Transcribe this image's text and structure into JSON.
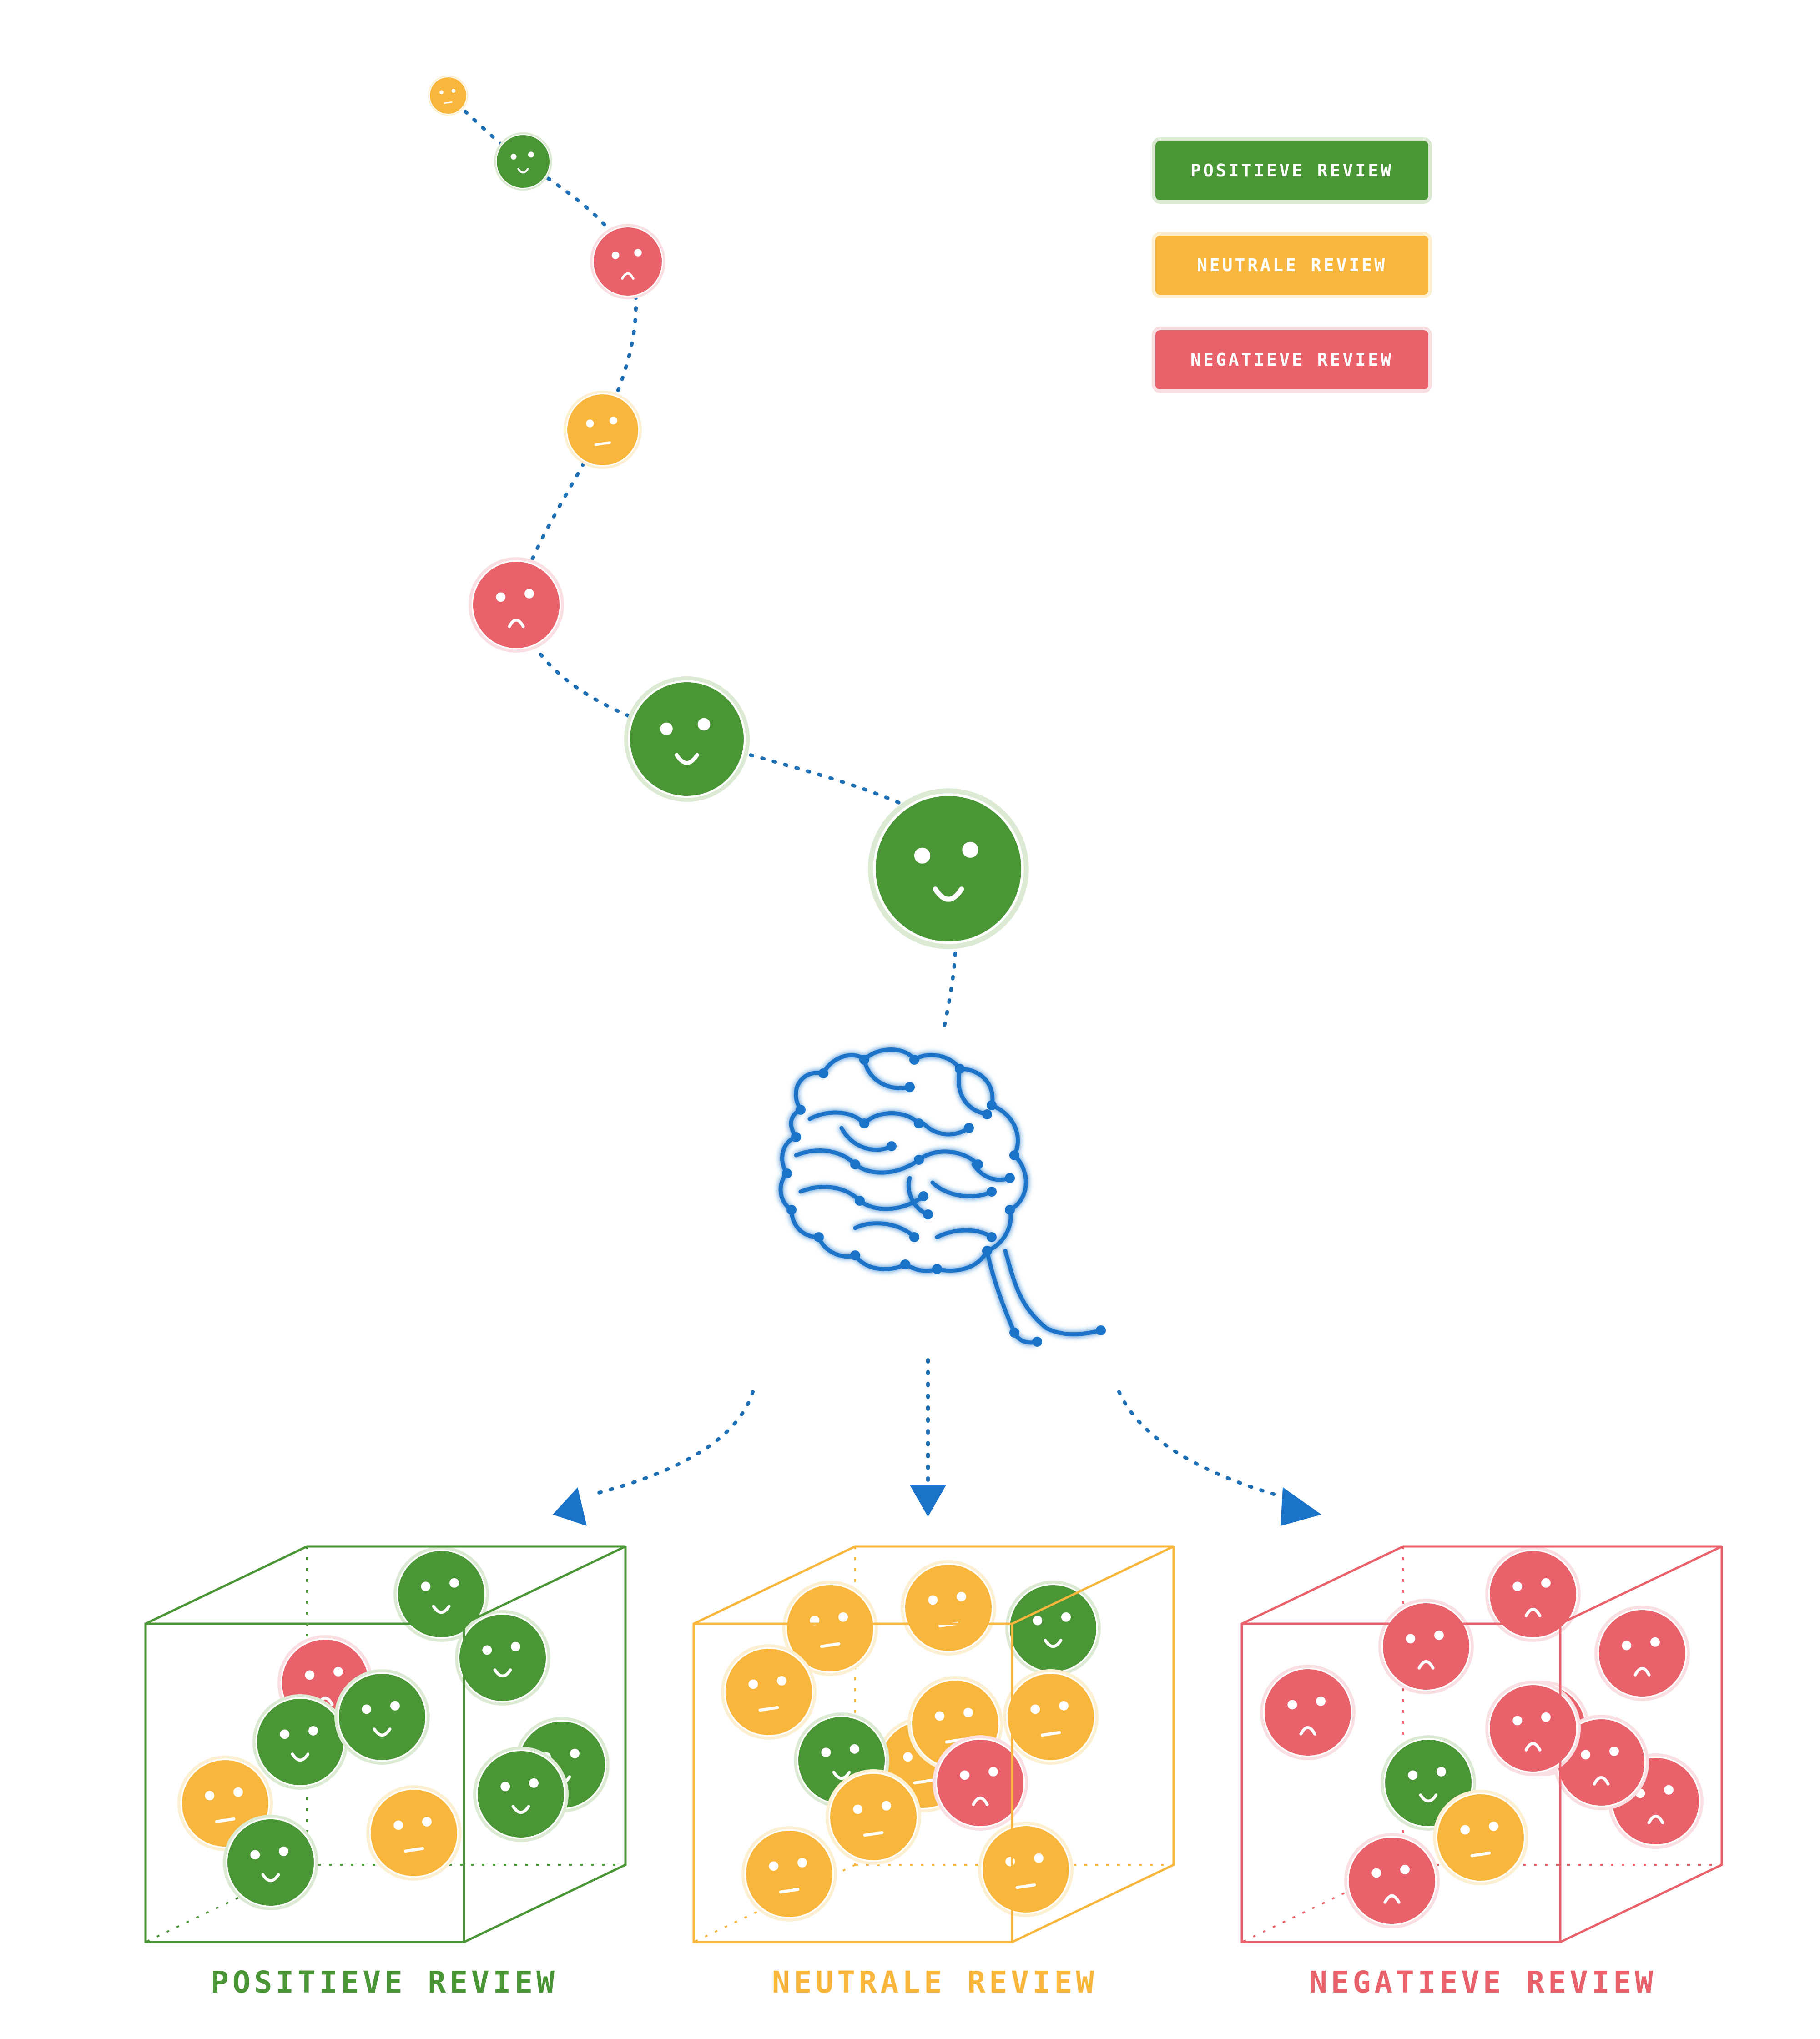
{
  "legend": {
    "positive": "POSITIEVE REVIEW",
    "neutral": "NEUTRALE REVIEW",
    "negative": "NEGATIEVE REVIEW"
  },
  "boxes": {
    "positive": "POSITIEVE REVIEW",
    "neutral": "NEUTRALE REVIEW",
    "negative": "NEGATIEVE REVIEW"
  },
  "colors": {
    "positive": "#4a9535",
    "neutral": "#f8b73c",
    "negative": "#e8616b",
    "brain": "#1a73c8",
    "path": "#1f6fb5"
  },
  "review_stream": [
    "neutral",
    "positive",
    "negative",
    "neutral",
    "negative",
    "positive",
    "positive"
  ],
  "box_contents": {
    "positive": [
      "positive",
      "negative",
      "positive",
      "positive",
      "positive",
      "neutral",
      "positive",
      "positive",
      "neutral",
      "positive"
    ],
    "neutral": [
      "neutral",
      "neutral",
      "positive",
      "neutral",
      "neutral",
      "neutral",
      "positive",
      "negative",
      "neutral",
      "neutral",
      "neutral",
      "neutral"
    ],
    "negative": [
      "negative",
      "negative",
      "negative",
      "negative",
      "negative",
      "negative",
      "positive",
      "neutral",
      "negative",
      "negative",
      "negative"
    ]
  }
}
